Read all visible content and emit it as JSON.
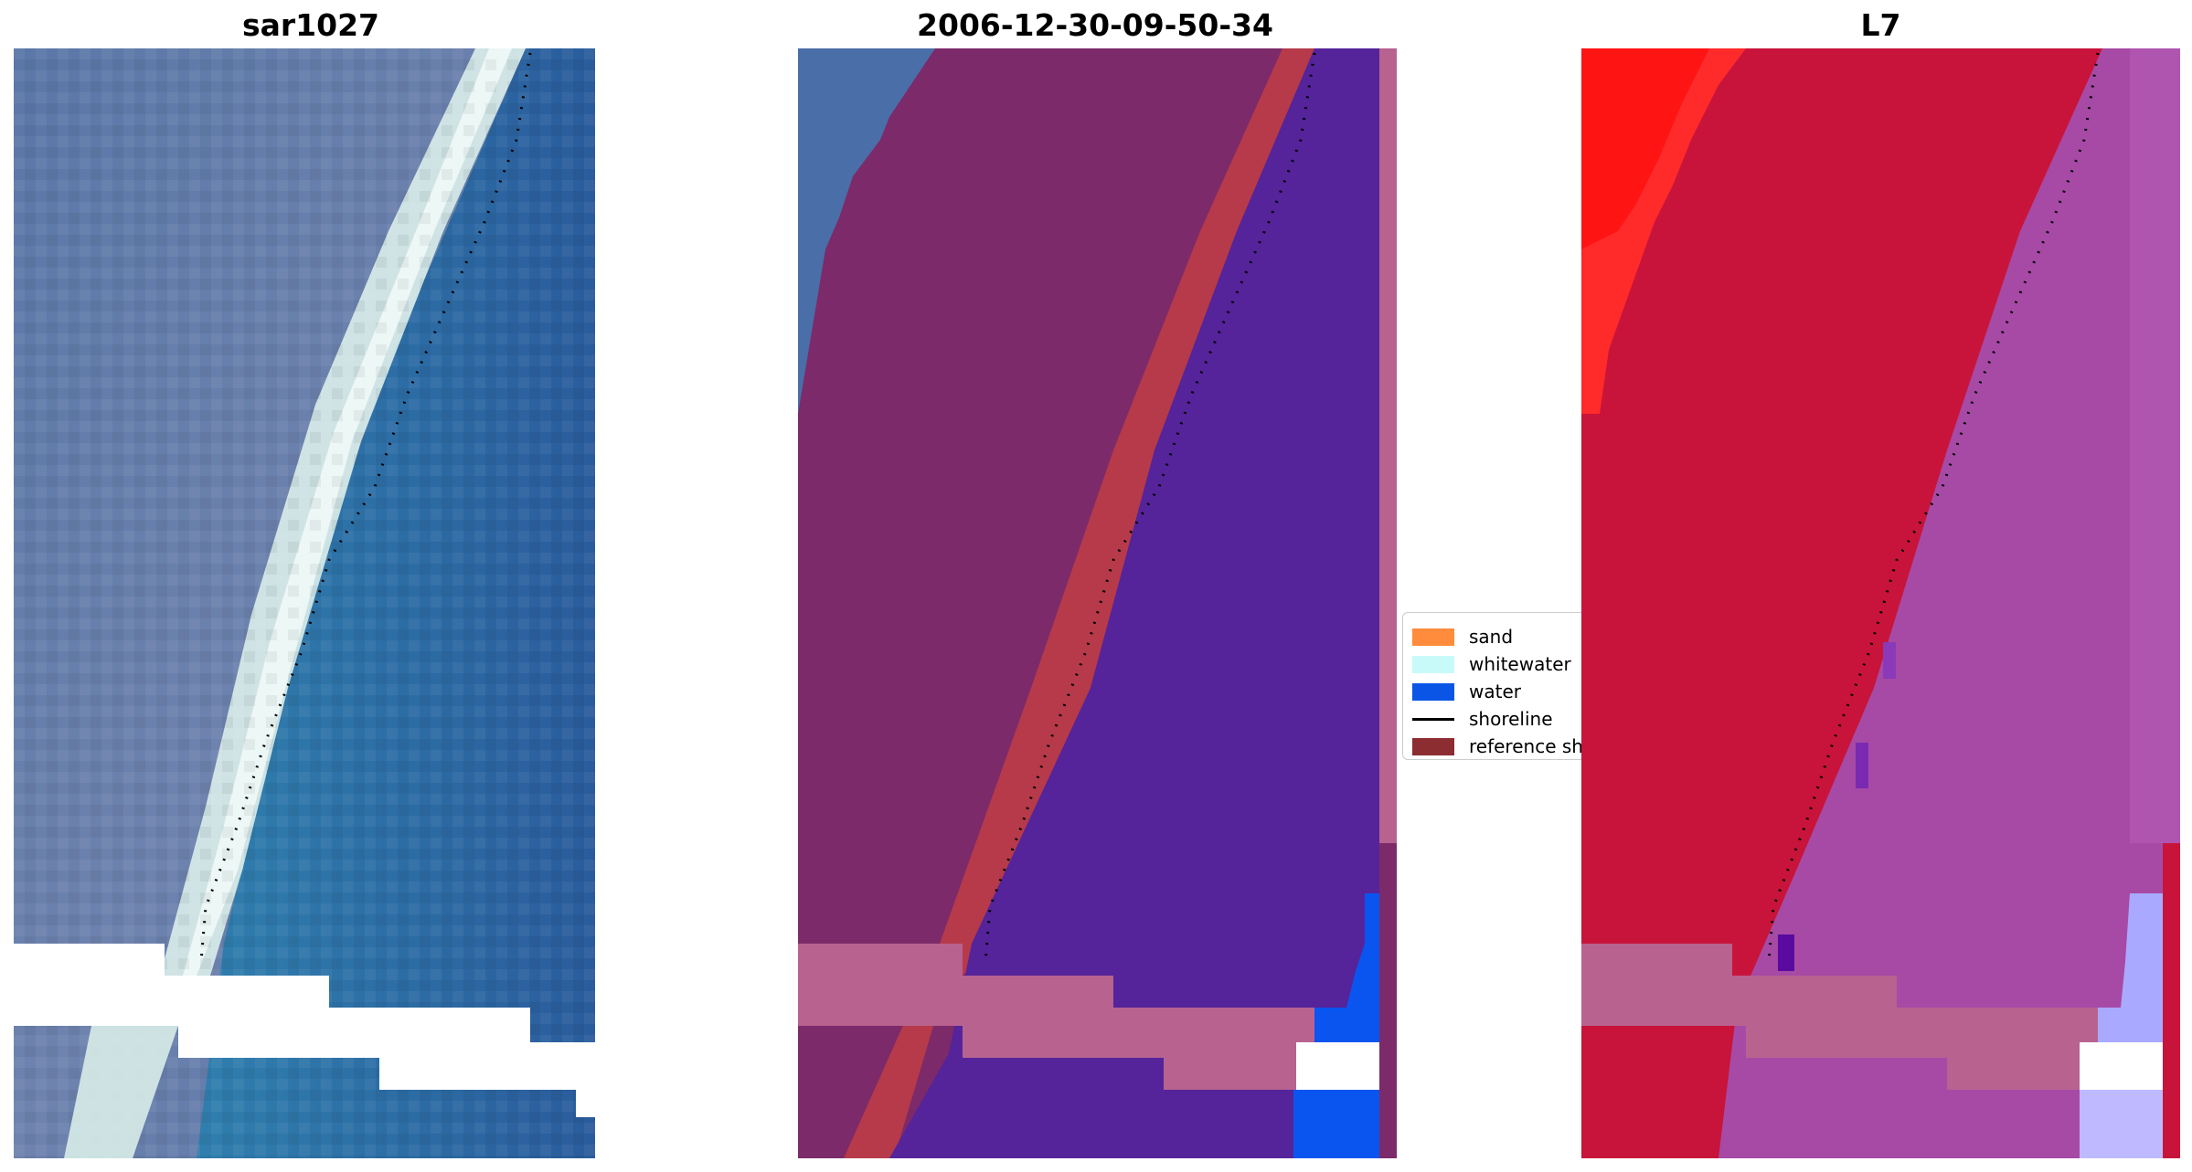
{
  "panels": [
    {
      "title": "sar1027"
    },
    {
      "title": "2006-12-30-09-50-34"
    },
    {
      "title": "L7"
    }
  ],
  "legend": {
    "items": [
      {
        "label": "sand",
        "color": "#ff8c3c"
      },
      {
        "label": "whitewater",
        "color": "#c8fafa"
      },
      {
        "label": "water",
        "color": "#0a55e6"
      },
      {
        "label": "shoreline",
        "color": "#000000"
      },
      {
        "label": "reference shoreline",
        "color": "#8c2d32"
      }
    ]
  },
  "colors": {
    "rgb_land": "#5a77a8",
    "rgb_water": "#2f6aa6",
    "rgb_surf": "#d8ece8",
    "class_land": "#7c2a6a",
    "class_sand": "#b63a4a",
    "class_water": "#55239a",
    "class_nodata": "#b86290",
    "class_bluewater": "#0a55f0",
    "l7_land": "#c8143a",
    "l7_sea": "#a64aa6",
    "l7_bright": "#ff2020",
    "l7_lavender": "#a9aaff"
  }
}
